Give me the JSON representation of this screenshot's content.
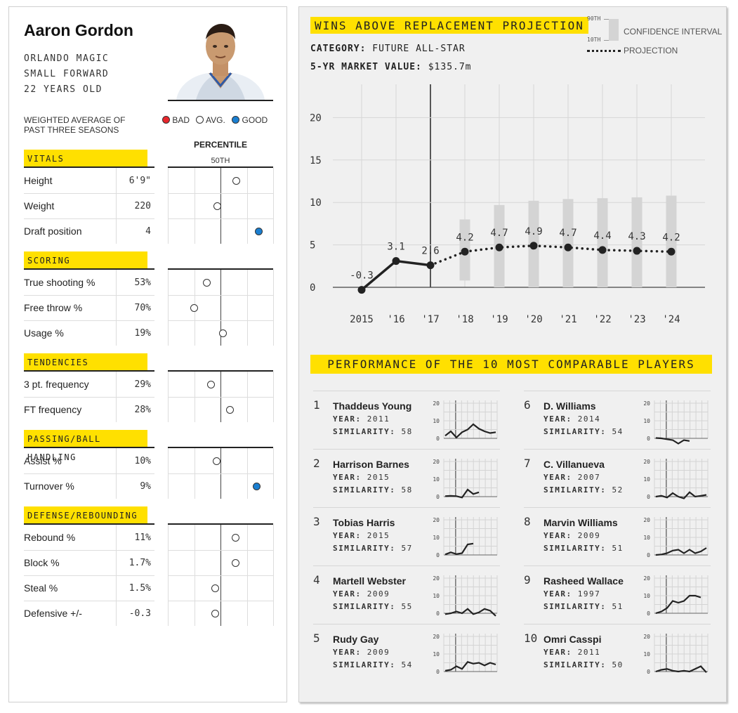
{
  "player": {
    "name": "Aaron Gordon",
    "team": "ORLANDO MAGIC",
    "position": "SMALL FORWARD",
    "age": "22 YEARS OLD"
  },
  "note": "WEIGHTED AVERAGE OF PAST THREE SEASONS",
  "legend": {
    "bad": "BAD",
    "avg": "AVG.",
    "good": "GOOD"
  },
  "colors": {
    "bad": "#e8272c",
    "avg": "#ffffff",
    "good": "#1a7fd1",
    "highlight": "#ffe000"
  },
  "percentile_header": "PERCENTILE",
  "percentile_mid": "50TH",
  "sections": [
    {
      "title": "VITALS",
      "rows": [
        {
          "label": "Height",
          "value": "6'9\"",
          "pct": 65,
          "rating": "avg"
        },
        {
          "label": "Weight",
          "value": "220",
          "pct": 47,
          "rating": "avg"
        },
        {
          "label": "Draft position",
          "value": "4",
          "pct": 86,
          "rating": "good"
        }
      ]
    },
    {
      "title": "SCORING",
      "rows": [
        {
          "label": "True shooting %",
          "value": "53%",
          "pct": 37,
          "rating": "avg"
        },
        {
          "label": "Free throw %",
          "value": "70%",
          "pct": 25,
          "rating": "avg"
        },
        {
          "label": "Usage %",
          "value": "19%",
          "pct": 52,
          "rating": "avg"
        }
      ]
    },
    {
      "title": "TENDENCIES",
      "rows": [
        {
          "label": "3 pt. frequency",
          "value": "29%",
          "pct": 41,
          "rating": "avg"
        },
        {
          "label": "FT frequency",
          "value": "28%",
          "pct": 59,
          "rating": "avg"
        }
      ]
    },
    {
      "title": "PASSING/BALL HANDLING",
      "rows": [
        {
          "label": "Assist %",
          "value": "10%",
          "pct": 46,
          "rating": "avg"
        },
        {
          "label": "Turnover %",
          "value": "9%",
          "pct": 84,
          "rating": "good"
        }
      ]
    },
    {
      "title": "DEFENSE/REBOUNDING",
      "rows": [
        {
          "label": "Rebound %",
          "value": "11%",
          "pct": 64,
          "rating": "avg"
        },
        {
          "label": "Block %",
          "value": "1.7%",
          "pct": 64,
          "rating": "avg"
        },
        {
          "label": "Steal %",
          "value": "1.5%",
          "pct": 45,
          "rating": "avg"
        },
        {
          "label": "Defensive +/-",
          "value": "-0.3",
          "pct": 45,
          "rating": "avg"
        }
      ]
    }
  ],
  "projection": {
    "title": "WINS ABOVE REPLACEMENT PROJECTION",
    "category_label": "CATEGORY:",
    "category_value": "FUTURE ALL-STAR",
    "market_label": "5-YR MARKET VALUE:",
    "market_value": "$135.7m",
    "legend_90": "90TH",
    "legend_10": "10TH",
    "legend_ci": "CONFIDENCE INTERVAL",
    "legend_proj": "PROJECTION"
  },
  "chart_data": [
    {
      "type": "line",
      "title": "WINS ABOVE REPLACEMENT PROJECTION",
      "x": [
        "2015",
        "'16",
        "'17",
        "'18",
        "'19",
        "'20",
        "'21",
        "'22",
        "'23",
        "'24"
      ],
      "series": [
        {
          "name": "",
          "values": [
            -0.3,
            3.1,
            2.6,
            null,
            null,
            null,
            null,
            null,
            null,
            null
          ]
        },
        {
          "name": "PROJECTION",
          "values": [
            null,
            null,
            2.6,
            4.2,
            4.7,
            4.9,
            4.7,
            4.4,
            4.3,
            4.2
          ]
        }
      ],
      "labels": [
        "-0.3",
        "3.1",
        "2.6",
        "4.2",
        "4.7",
        "4.9",
        "4.7",
        "4.4",
        "4.3",
        "4.2"
      ],
      "confidence_interval": [
        {
          "x": "'18",
          "low": 0.8,
          "high": 8.0
        },
        {
          "x": "'19",
          "low": 0.0,
          "high": 9.7
        },
        {
          "x": "'20",
          "low": 0.0,
          "high": 10.2
        },
        {
          "x": "'21",
          "low": 0.0,
          "high": 10.4
        },
        {
          "x": "'22",
          "low": 0.0,
          "high": 10.5
        },
        {
          "x": "'23",
          "low": 0.0,
          "high": 10.6
        },
        {
          "x": "'24",
          "low": 0.0,
          "high": 10.8
        }
      ],
      "yticks": [
        "0",
        "5",
        "10",
        "15",
        "20"
      ],
      "ylim": [
        -0.5,
        24
      ],
      "grid": true
    }
  ],
  "comparables": {
    "title": "PERFORMANCE OF THE 10 MOST COMPARABLE PLAYERS",
    "year_label": "YEAR:",
    "similarity_label": "SIMILARITY:",
    "spark_ticks": [
      "20",
      "10",
      "0"
    ],
    "players": [
      {
        "rank": "1",
        "name": "Thaddeus Young",
        "year": "2011",
        "similarity": "58",
        "war": [
          1.5,
          4,
          0.5,
          3.5,
          5,
          8,
          5.5,
          4,
          3,
          3.5
        ]
      },
      {
        "rank": "2",
        "name": "Harrison Barnes",
        "year": "2015",
        "similarity": "58",
        "war": [
          0.3,
          0.5,
          0.3,
          -0.5,
          4,
          1.5,
          2.5
        ]
      },
      {
        "rank": "3",
        "name": "Tobias Harris",
        "year": "2015",
        "similarity": "57",
        "war": [
          0.3,
          1.5,
          0.5,
          1,
          6,
          6.5
        ]
      },
      {
        "rank": "4",
        "name": "Martell Webster",
        "year": "2009",
        "similarity": "55",
        "war": [
          -0.5,
          0,
          1,
          0,
          2.5,
          -0.5,
          0.5,
          2.5,
          1.5,
          -1.5
        ]
      },
      {
        "rank": "5",
        "name": "Rudy Gay",
        "year": "2009",
        "similarity": "54",
        "war": [
          0.5,
          1,
          3,
          1.5,
          5.5,
          4.5,
          5,
          3.5,
          5,
          4
        ]
      },
      {
        "rank": "6",
        "name": "D. Williams",
        "year": "2014",
        "similarity": "54",
        "war": [
          0.2,
          0,
          -0.5,
          -1,
          -3,
          -1,
          -1.5
        ]
      },
      {
        "rank": "7",
        "name": "C. Villanueva",
        "year": "2007",
        "similarity": "52",
        "war": [
          0,
          0.5,
          -0.5,
          2,
          0,
          -1,
          2.5,
          0,
          0.5,
          1
        ]
      },
      {
        "rank": "8",
        "name": "Marvin Williams",
        "year": "2009",
        "similarity": "51",
        "war": [
          0,
          0.3,
          1,
          2.5,
          3,
          1,
          3,
          1,
          2,
          4
        ]
      },
      {
        "rank": "9",
        "name": "Rasheed Wallace",
        "year": "1997",
        "similarity": "51",
        "war": [
          0,
          1,
          3,
          7,
          6,
          7,
          10,
          10,
          9
        ]
      },
      {
        "rank": "10",
        "name": "Omri Casspi",
        "year": "2011",
        "similarity": "50",
        "war": [
          0,
          1,
          1.5,
          0.5,
          0,
          0.5,
          0,
          1.5,
          3,
          -0.5
        ]
      }
    ]
  }
}
